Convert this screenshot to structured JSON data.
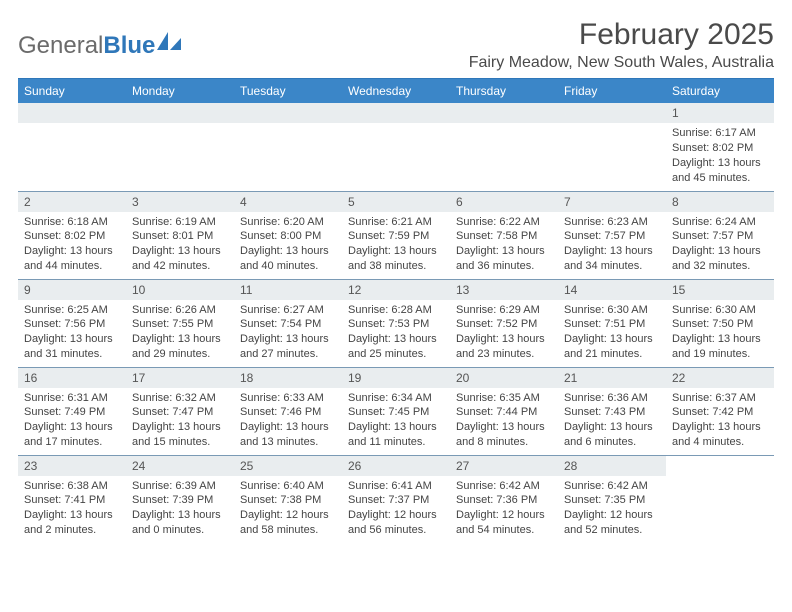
{
  "logo": {
    "general": "General",
    "blue": "Blue"
  },
  "title": "February 2025",
  "location": "Fairy Meadow, New South Wales, Australia",
  "colors": {
    "header_bg": "#3b86c8",
    "header_text": "#ffffff",
    "daynum_bg": "#e9edef",
    "border": "#7a9ab5",
    "logo_gray": "#6b6b6b",
    "logo_blue": "#2f77b9"
  },
  "weekdays": [
    "Sunday",
    "Monday",
    "Tuesday",
    "Wednesday",
    "Thursday",
    "Friday",
    "Saturday"
  ],
  "grid": [
    [
      null,
      null,
      null,
      null,
      null,
      null,
      {
        "n": "1",
        "sr": "6:17 AM",
        "ss": "8:02 PM",
        "dl": "13 hours and 45 minutes."
      }
    ],
    [
      {
        "n": "2",
        "sr": "6:18 AM",
        "ss": "8:02 PM",
        "dl": "13 hours and 44 minutes."
      },
      {
        "n": "3",
        "sr": "6:19 AM",
        "ss": "8:01 PM",
        "dl": "13 hours and 42 minutes."
      },
      {
        "n": "4",
        "sr": "6:20 AM",
        "ss": "8:00 PM",
        "dl": "13 hours and 40 minutes."
      },
      {
        "n": "5",
        "sr": "6:21 AM",
        "ss": "7:59 PM",
        "dl": "13 hours and 38 minutes."
      },
      {
        "n": "6",
        "sr": "6:22 AM",
        "ss": "7:58 PM",
        "dl": "13 hours and 36 minutes."
      },
      {
        "n": "7",
        "sr": "6:23 AM",
        "ss": "7:57 PM",
        "dl": "13 hours and 34 minutes."
      },
      {
        "n": "8",
        "sr": "6:24 AM",
        "ss": "7:57 PM",
        "dl": "13 hours and 32 minutes."
      }
    ],
    [
      {
        "n": "9",
        "sr": "6:25 AM",
        "ss": "7:56 PM",
        "dl": "13 hours and 31 minutes."
      },
      {
        "n": "10",
        "sr": "6:26 AM",
        "ss": "7:55 PM",
        "dl": "13 hours and 29 minutes."
      },
      {
        "n": "11",
        "sr": "6:27 AM",
        "ss": "7:54 PM",
        "dl": "13 hours and 27 minutes."
      },
      {
        "n": "12",
        "sr": "6:28 AM",
        "ss": "7:53 PM",
        "dl": "13 hours and 25 minutes."
      },
      {
        "n": "13",
        "sr": "6:29 AM",
        "ss": "7:52 PM",
        "dl": "13 hours and 23 minutes."
      },
      {
        "n": "14",
        "sr": "6:30 AM",
        "ss": "7:51 PM",
        "dl": "13 hours and 21 minutes."
      },
      {
        "n": "15",
        "sr": "6:30 AM",
        "ss": "7:50 PM",
        "dl": "13 hours and 19 minutes."
      }
    ],
    [
      {
        "n": "16",
        "sr": "6:31 AM",
        "ss": "7:49 PM",
        "dl": "13 hours and 17 minutes."
      },
      {
        "n": "17",
        "sr": "6:32 AM",
        "ss": "7:47 PM",
        "dl": "13 hours and 15 minutes."
      },
      {
        "n": "18",
        "sr": "6:33 AM",
        "ss": "7:46 PM",
        "dl": "13 hours and 13 minutes."
      },
      {
        "n": "19",
        "sr": "6:34 AM",
        "ss": "7:45 PM",
        "dl": "13 hours and 11 minutes."
      },
      {
        "n": "20",
        "sr": "6:35 AM",
        "ss": "7:44 PM",
        "dl": "13 hours and 8 minutes."
      },
      {
        "n": "21",
        "sr": "6:36 AM",
        "ss": "7:43 PM",
        "dl": "13 hours and 6 minutes."
      },
      {
        "n": "22",
        "sr": "6:37 AM",
        "ss": "7:42 PM",
        "dl": "13 hours and 4 minutes."
      }
    ],
    [
      {
        "n": "23",
        "sr": "6:38 AM",
        "ss": "7:41 PM",
        "dl": "13 hours and 2 minutes."
      },
      {
        "n": "24",
        "sr": "6:39 AM",
        "ss": "7:39 PM",
        "dl": "13 hours and 0 minutes."
      },
      {
        "n": "25",
        "sr": "6:40 AM",
        "ss": "7:38 PM",
        "dl": "12 hours and 58 minutes."
      },
      {
        "n": "26",
        "sr": "6:41 AM",
        "ss": "7:37 PM",
        "dl": "12 hours and 56 minutes."
      },
      {
        "n": "27",
        "sr": "6:42 AM",
        "ss": "7:36 PM",
        "dl": "12 hours and 54 minutes."
      },
      {
        "n": "28",
        "sr": "6:42 AM",
        "ss": "7:35 PM",
        "dl": "12 hours and 52 minutes."
      },
      null
    ]
  ],
  "labels": {
    "sunrise": "Sunrise:",
    "sunset": "Sunset:",
    "daylight": "Daylight:"
  }
}
